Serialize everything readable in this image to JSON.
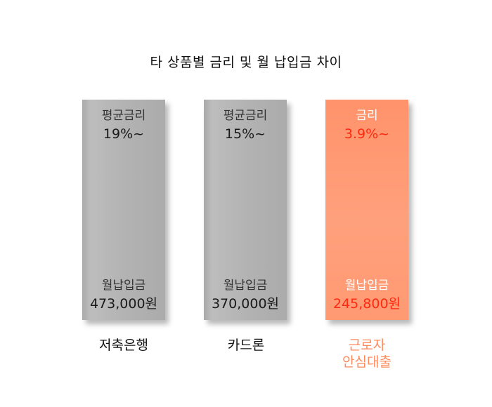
{
  "chart_data": {
    "type": "table",
    "title": "타 상품별 금리 및 월 납입금 차이",
    "columns": [
      {
        "name_lines": [
          "저축은행"
        ],
        "rate_label": "평균금리",
        "rate": "19%~",
        "payment_label": "월납입금",
        "payment": "473,000원",
        "color": "#b3b3b3"
      },
      {
        "name_lines": [
          "카드론"
        ],
        "rate_label": "평균금리",
        "rate": "15%~",
        "payment_label": "월납입금",
        "payment": "370,000원",
        "color": "#b3b3b3"
      },
      {
        "name_lines": [
          "근로자",
          "안심대출"
        ],
        "rate_label": "금리",
        "rate": "3.9%~",
        "payment_label": "월납입금",
        "payment": "245,800원",
        "color": "#ff9a73"
      }
    ]
  },
  "colors": {
    "highlight_card": "#ff9a73",
    "highlight_value": "#ff2a10",
    "highlight_name": "#ff8a5c",
    "gray_card": "#b3b3b3"
  }
}
